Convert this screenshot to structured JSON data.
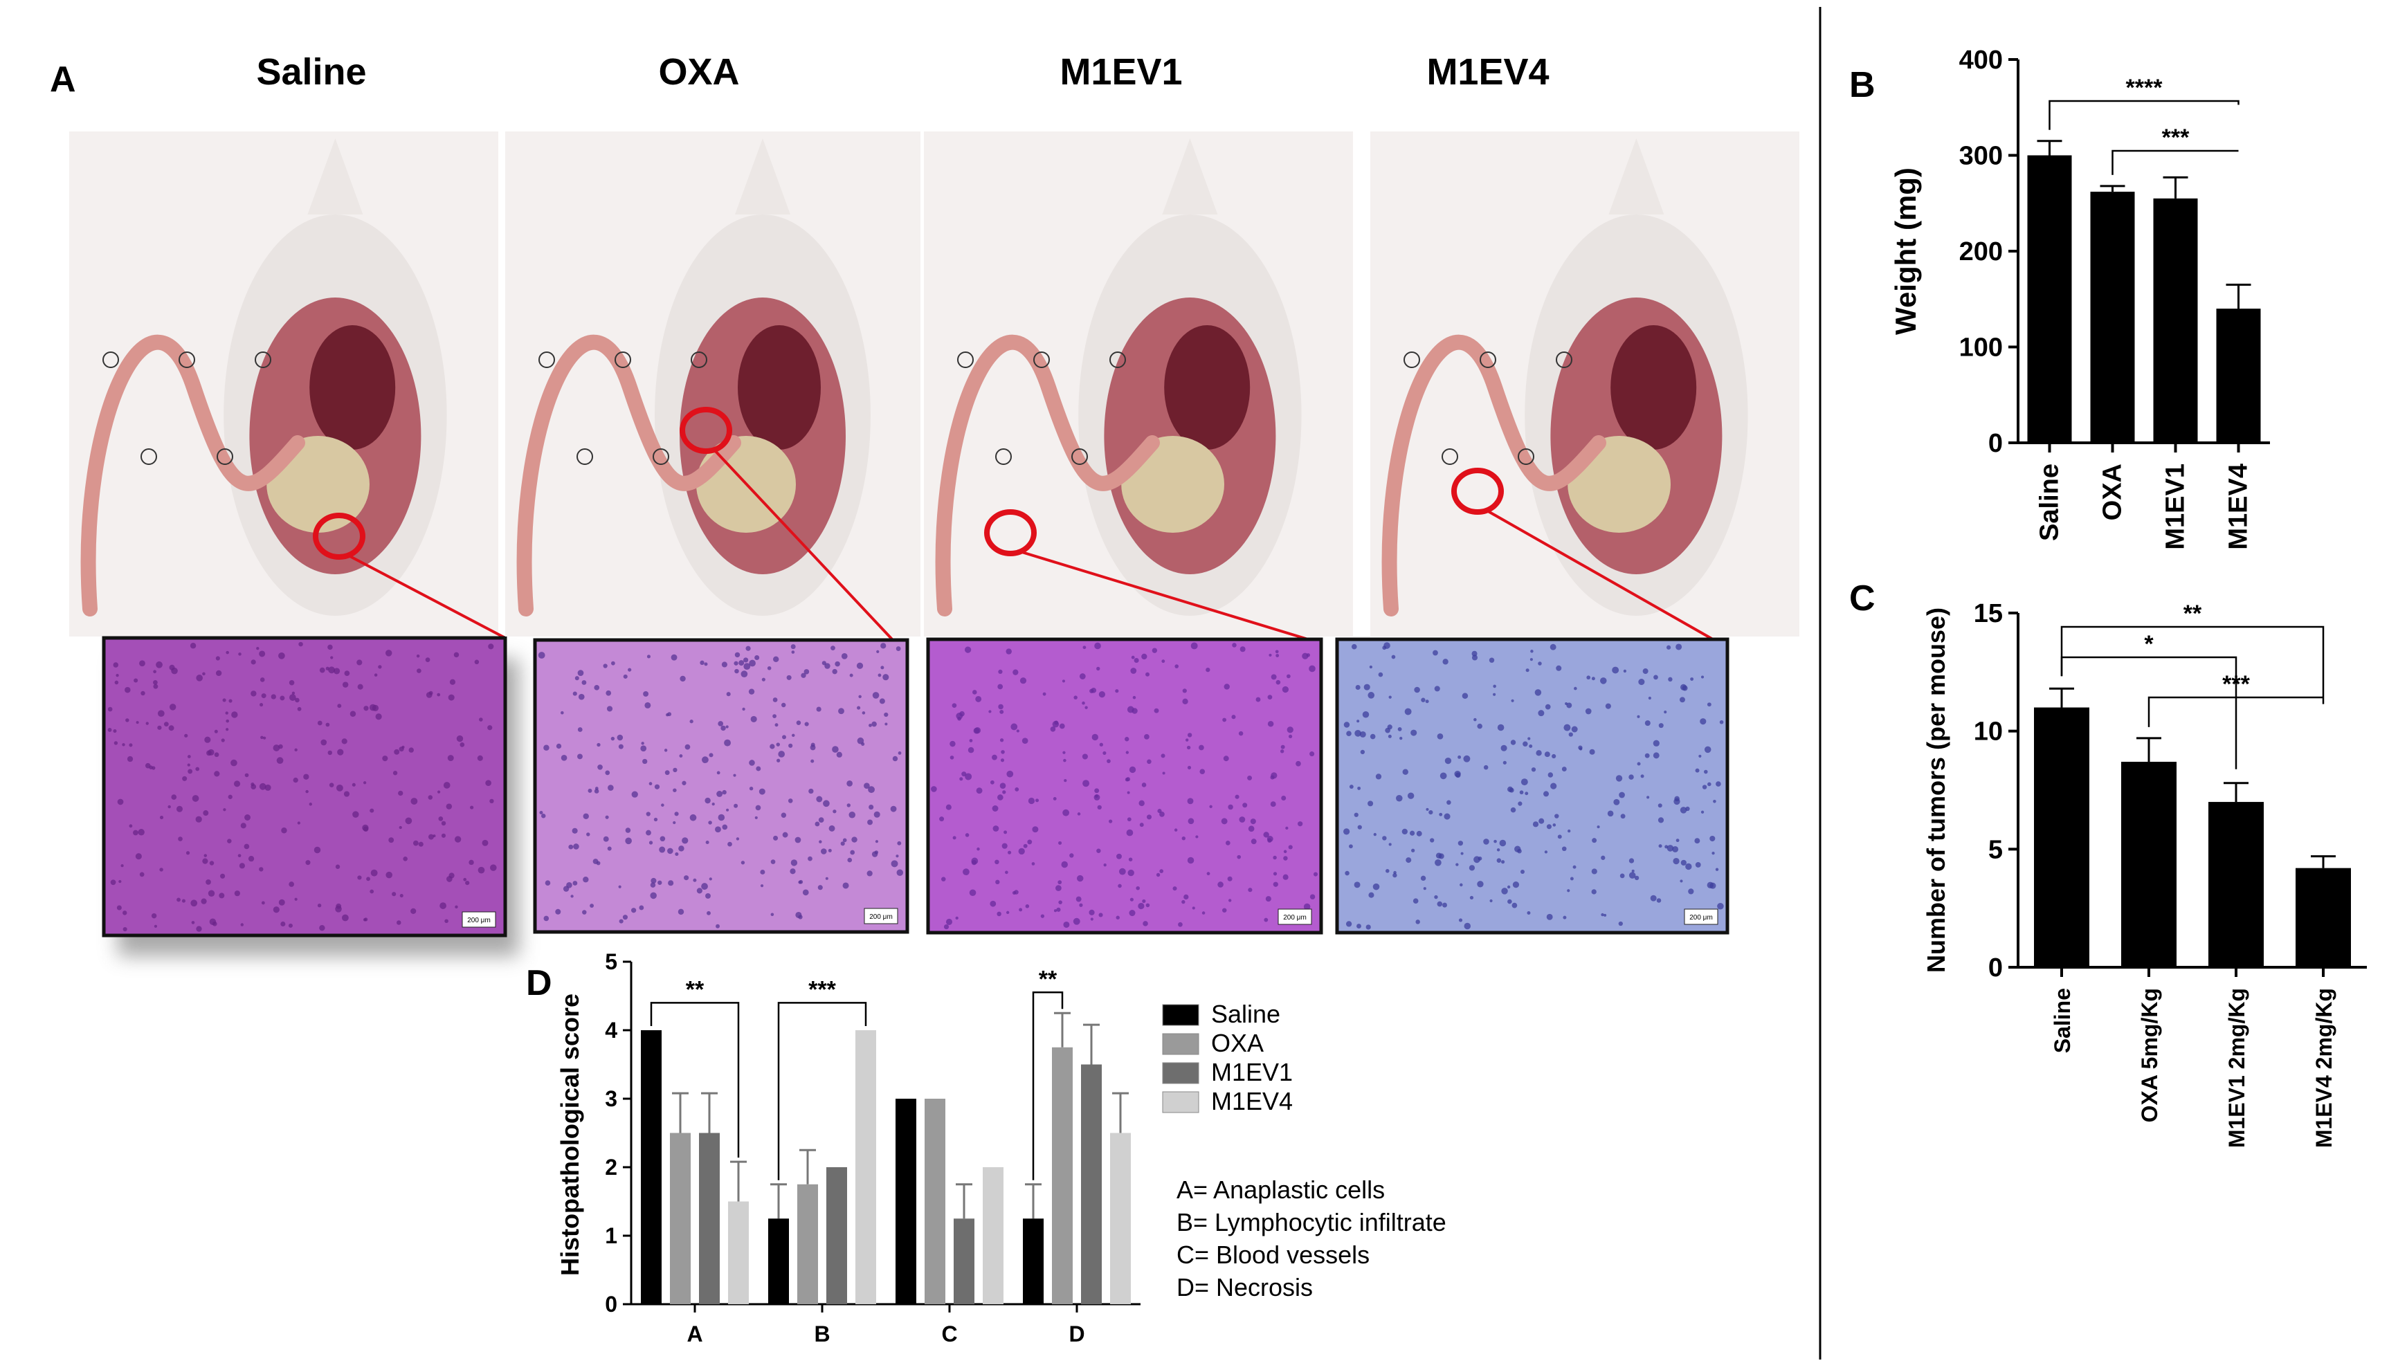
{
  "panel_a": {
    "letter": "A",
    "groups": [
      {
        "title": "Saline",
        "tissue_color": "#a44fb7",
        "tissue_dark": "#6b2489",
        "scale_label": "200 μm"
      },
      {
        "title": "OXA",
        "tissue_color": "#c489d6",
        "tissue_dark": "#5a3595",
        "scale_label": "200 μm"
      },
      {
        "title": "M1EV1",
        "tissue_color": "#b45ccf",
        "tissue_dark": "#6a2b9e",
        "scale_label": "200 μm"
      },
      {
        "title": "M1EV4",
        "tissue_color": "#9aa6dc",
        "tissue_dark": "#3e3f9e",
        "scale_label": "200 μm"
      }
    ]
  },
  "panel_b": {
    "letter": "B"
  },
  "panel_c": {
    "letter": "C"
  },
  "panel_d": {
    "letter": "D",
    "legend": [
      "Saline",
      "OXA",
      "M1EV1",
      "M1EV4"
    ],
    "key": [
      "A= Anaplastic cells",
      "B= Lymphocytic infiltrate",
      "C= Blood vessels",
      "D= Necrosis"
    ]
  },
  "colors": {
    "bar_black": "#000000",
    "red_marker": "#e0101a",
    "series": [
      "#000000",
      "#9a9a9a",
      "#6e6e6e",
      "#d0d0d0"
    ]
  },
  "chart_data": [
    {
      "id": "B",
      "type": "bar",
      "categories": [
        "Saline",
        "OXA",
        "M1EV1",
        "M1EV4"
      ],
      "values": [
        300,
        262,
        255,
        140
      ],
      "errors": [
        15,
        6,
        22,
        25
      ],
      "ylabel": "Weight (mg)",
      "ylim": [
        0,
        400
      ],
      "yticks": [
        0,
        100,
        200,
        300,
        400
      ],
      "significance": [
        {
          "from": 0,
          "to": 3,
          "label": "****"
        },
        {
          "from": 1,
          "to": 3,
          "label": "***"
        }
      ]
    },
    {
      "id": "C",
      "type": "bar",
      "categories": [
        "Saline",
        "OXA 5mg/Kg",
        "M1EV1 2mg/Kg",
        "M1EV4 2mg/Kg"
      ],
      "values": [
        11.0,
        8.7,
        7.0,
        4.2
      ],
      "errors": [
        0.8,
        1.0,
        0.8,
        0.5
      ],
      "ylabel": "Number of tumors (per mouse)",
      "ylim": [
        0,
        15
      ],
      "yticks": [
        0,
        5,
        10,
        15
      ],
      "significance": [
        {
          "from": 0,
          "to": 3,
          "label": "**"
        },
        {
          "from": 0,
          "to": 2,
          "label": "*"
        },
        {
          "from": 1,
          "to": 3,
          "label": "***"
        }
      ]
    },
    {
      "id": "D",
      "type": "bar",
      "categories": [
        "A",
        "B",
        "C",
        "D"
      ],
      "series": [
        {
          "name": "Saline",
          "values": [
            4.0,
            1.25,
            3.0,
            1.25
          ],
          "errors": [
            0,
            0.5,
            0,
            0.5
          ]
        },
        {
          "name": "OXA",
          "values": [
            2.5,
            1.75,
            3.0,
            3.75
          ],
          "errors": [
            0.58,
            0.5,
            0,
            0.5
          ]
        },
        {
          "name": "M1EV1",
          "values": [
            2.5,
            2.0,
            1.25,
            3.5
          ],
          "errors": [
            0.58,
            0,
            0.5,
            0.58
          ]
        },
        {
          "name": "M1EV4",
          "values": [
            1.5,
            4.0,
            2.0,
            2.5
          ],
          "errors": [
            0.58,
            0,
            0,
            0.58
          ]
        }
      ],
      "ylabel": "Histopathological score",
      "ylim": [
        0,
        5
      ],
      "yticks": [
        0,
        1,
        2,
        3,
        4,
        5
      ],
      "significance": [
        {
          "category": 0,
          "from": 0,
          "to": 3,
          "label": "**"
        },
        {
          "category": 1,
          "from": 0,
          "to": 3,
          "label": "***"
        },
        {
          "category": 3,
          "from": 0,
          "to": 1,
          "label": "**"
        }
      ]
    }
  ]
}
